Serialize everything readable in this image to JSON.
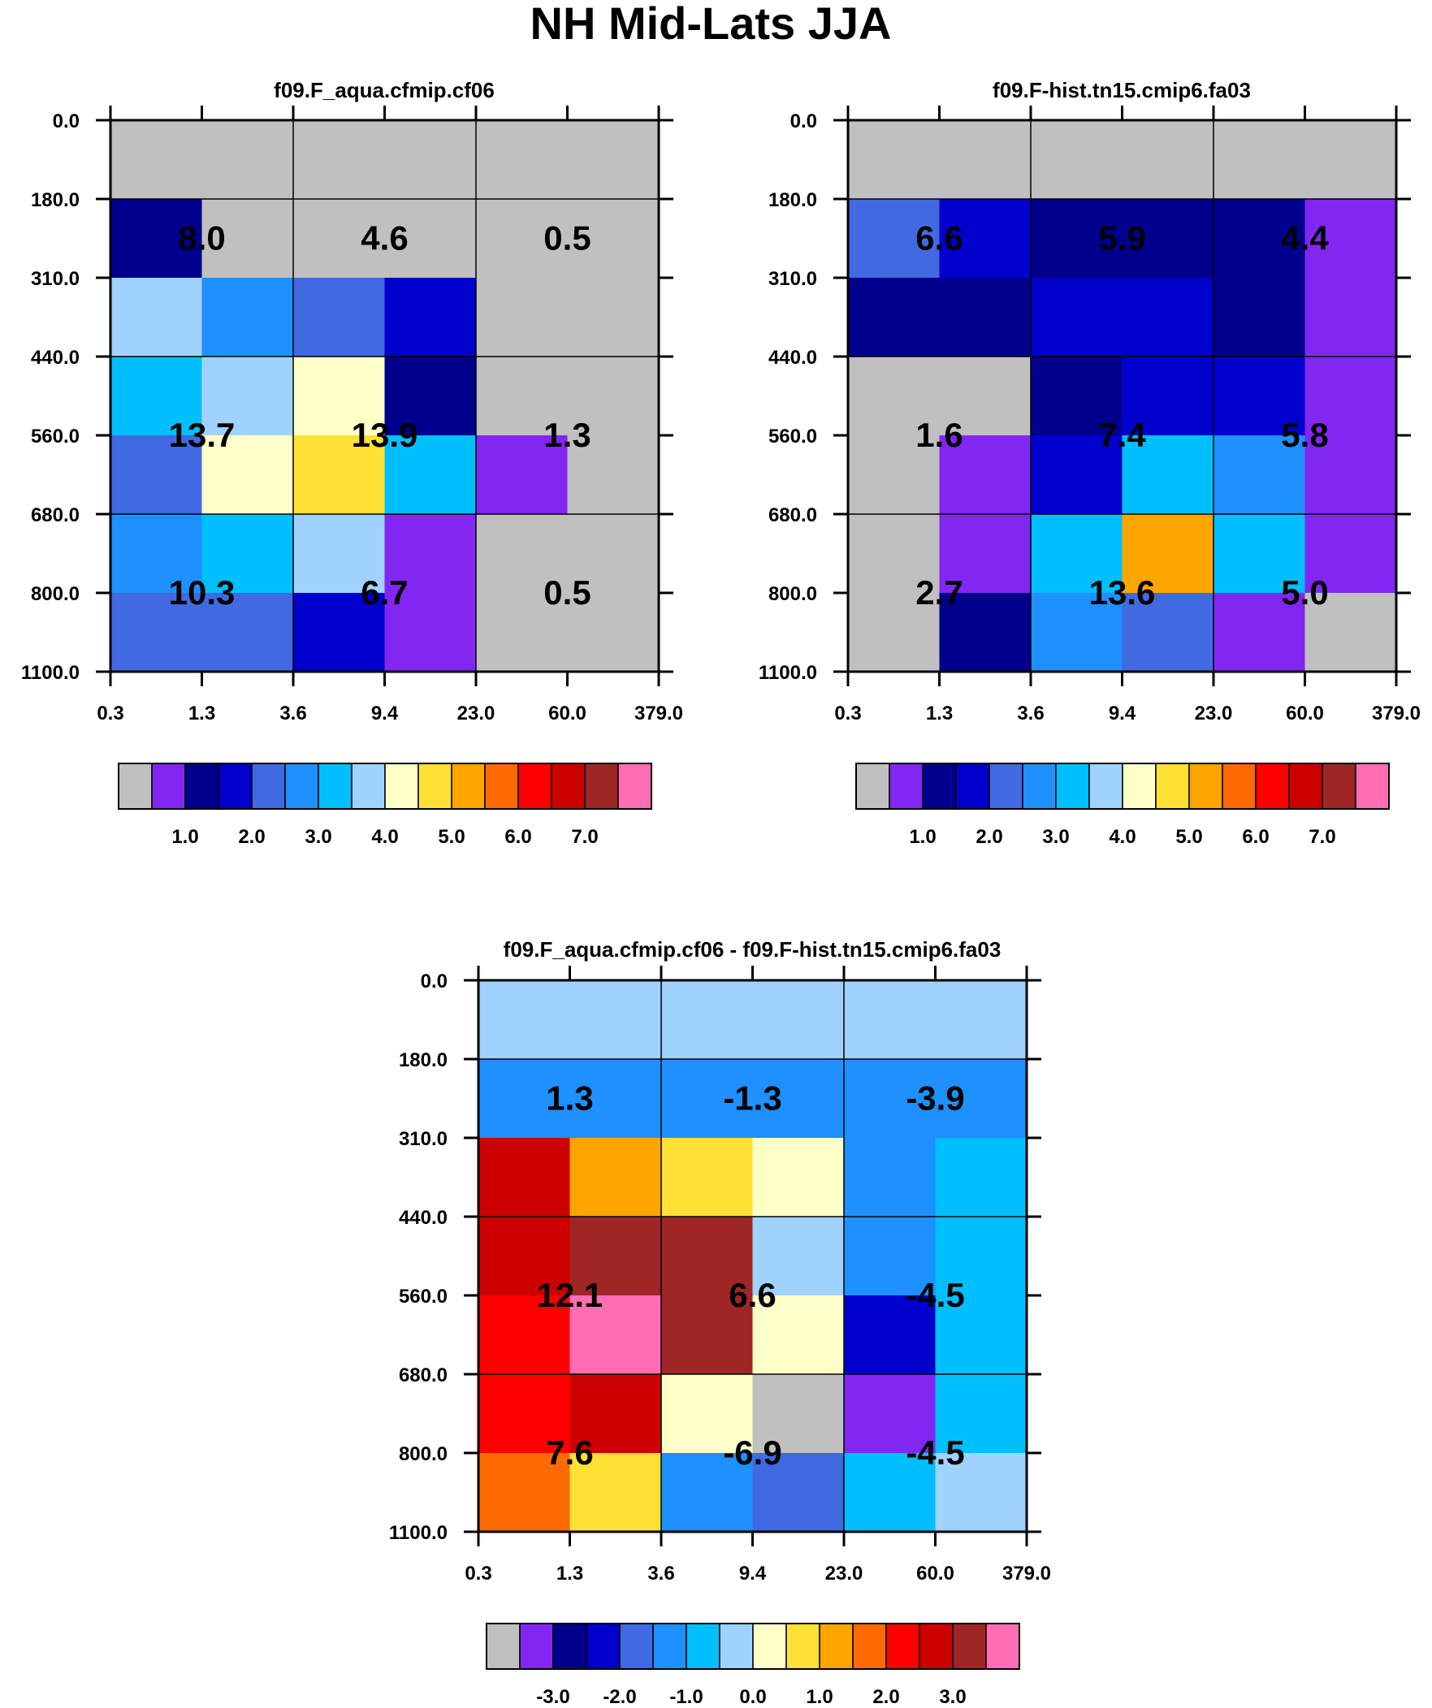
{
  "title": "NH Mid-Lats JJA",
  "colors": [
    "#c0c0c0",
    "#8227f2",
    "#00008c",
    "#0000cd",
    "#4169e1",
    "#1e90ff",
    "#00bfff",
    "#a0d2ff",
    "#ffffc8",
    "#ffe135",
    "#ffa500",
    "#ff6a00",
    "#ff0000",
    "#cd0000",
    "#9e2626",
    "#ff6eb4"
  ],
  "chart_data": [
    {
      "type": "heatmap",
      "title": "f09.F_aqua.cfmip.cf06",
      "x_ticks": [
        "0.3",
        "1.3",
        "3.6",
        "9.4",
        "23.0",
        "60.0",
        "379.0"
      ],
      "y_ticks": [
        "0.0",
        "180.0",
        "310.0",
        "440.0",
        "560.0",
        "680.0",
        "800.0",
        "1100.0"
      ],
      "cell_color_index": [
        [
          0,
          0,
          0,
          0,
          0,
          0
        ],
        [
          2,
          0,
          0,
          0,
          0,
          0
        ],
        [
          7,
          5,
          4,
          3,
          0,
          0
        ],
        [
          6,
          7,
          8,
          2,
          0,
          0
        ],
        [
          4,
          8,
          9,
          6,
          1,
          0
        ],
        [
          5,
          6,
          7,
          1,
          0,
          0
        ],
        [
          4,
          4,
          3,
          1,
          0,
          0
        ]
      ],
      "annotations": [
        {
          "row": 0,
          "col": 0,
          "text": "8.0"
        },
        {
          "row": 0,
          "col": 1,
          "text": "4.6"
        },
        {
          "row": 0,
          "col": 2,
          "text": "0.5"
        },
        {
          "row": 1,
          "col": 0,
          "text": "13.7"
        },
        {
          "row": 1,
          "col": 1,
          "text": "13.9"
        },
        {
          "row": 1,
          "col": 2,
          "text": "1.3"
        },
        {
          "row": 2,
          "col": 0,
          "text": "10.3"
        },
        {
          "row": 2,
          "col": 1,
          "text": "6.7"
        },
        {
          "row": 2,
          "col": 2,
          "text": "0.5"
        }
      ],
      "colorbar_labels": [
        "1.0",
        "2.0",
        "3.0",
        "4.0",
        "5.0",
        "6.0",
        "7.0"
      ]
    },
    {
      "type": "heatmap",
      "title": "f09.F-hist.tn15.cmip6.fa03",
      "x_ticks": [
        "0.3",
        "1.3",
        "3.6",
        "9.4",
        "23.0",
        "60.0",
        "379.0"
      ],
      "y_ticks": [
        "0.0",
        "180.0",
        "310.0",
        "440.0",
        "560.0",
        "680.0",
        "800.0",
        "1100.0"
      ],
      "cell_color_index": [
        [
          0,
          0,
          0,
          0,
          0,
          0
        ],
        [
          4,
          3,
          2,
          2,
          2,
          1
        ],
        [
          2,
          2,
          3,
          3,
          2,
          1
        ],
        [
          0,
          0,
          2,
          3,
          3,
          1
        ],
        [
          0,
          1,
          3,
          6,
          5,
          1
        ],
        [
          0,
          1,
          6,
          10,
          6,
          1
        ],
        [
          0,
          2,
          5,
          4,
          1,
          0
        ]
      ],
      "annotations": [
        {
          "row": 0,
          "col": 0,
          "text": "6.6"
        },
        {
          "row": 0,
          "col": 1,
          "text": "5.9"
        },
        {
          "row": 0,
          "col": 2,
          "text": "4.4"
        },
        {
          "row": 1,
          "col": 0,
          "text": "1.6"
        },
        {
          "row": 1,
          "col": 1,
          "text": "7.4"
        },
        {
          "row": 1,
          "col": 2,
          "text": "5.8"
        },
        {
          "row": 2,
          "col": 0,
          "text": "2.7"
        },
        {
          "row": 2,
          "col": 1,
          "text": "13.6"
        },
        {
          "row": 2,
          "col": 2,
          "text": "5.0"
        }
      ],
      "colorbar_labels": [
        "1.0",
        "2.0",
        "3.0",
        "4.0",
        "5.0",
        "6.0",
        "7.0"
      ]
    },
    {
      "type": "heatmap",
      "title": "f09.F_aqua.cfmip.cf06 - f09.F-hist.tn15.cmip6.fa03",
      "x_ticks": [
        "0.3",
        "1.3",
        "3.6",
        "9.4",
        "23.0",
        "60.0",
        "379.0"
      ],
      "y_ticks": [
        "0.0",
        "180.0",
        "310.0",
        "440.0",
        "560.0",
        "680.0",
        "800.0",
        "1100.0"
      ],
      "cell_color_index": [
        [
          7,
          7,
          7,
          7,
          7,
          7
        ],
        [
          5,
          5,
          5,
          5,
          5,
          5
        ],
        [
          13,
          10,
          9,
          8,
          5,
          6
        ],
        [
          13,
          14,
          14,
          7,
          5,
          6
        ],
        [
          12,
          15,
          14,
          8,
          3,
          6
        ],
        [
          12,
          13,
          8,
          0,
          1,
          6
        ],
        [
          11,
          9,
          5,
          4,
          6,
          7
        ]
      ],
      "annotations": [
        {
          "row": 0,
          "col": 0,
          "text": "1.3"
        },
        {
          "row": 0,
          "col": 1,
          "text": "-1.3"
        },
        {
          "row": 0,
          "col": 2,
          "text": "-3.9"
        },
        {
          "row": 1,
          "col": 0,
          "text": "12.1"
        },
        {
          "row": 1,
          "col": 1,
          "text": "6.6"
        },
        {
          "row": 1,
          "col": 2,
          "text": "-4.5"
        },
        {
          "row": 2,
          "col": 0,
          "text": "7.6"
        },
        {
          "row": 2,
          "col": 1,
          "text": "-6.9"
        },
        {
          "row": 2,
          "col": 2,
          "text": "-4.5"
        }
      ],
      "colorbar_labels": [
        "-3.0",
        "-2.0",
        "-1.0",
        "0.0",
        "1.0",
        "2.0",
        "3.0"
      ]
    }
  ]
}
